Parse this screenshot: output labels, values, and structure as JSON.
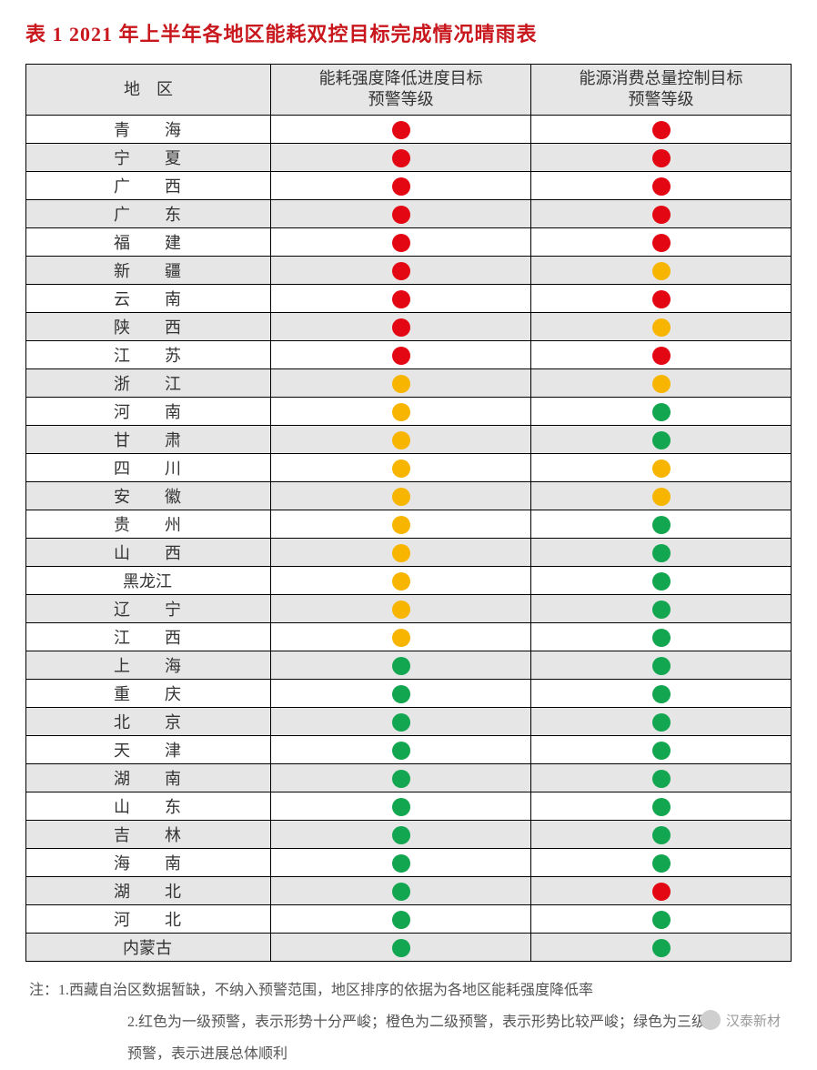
{
  "title": "表 1  2021 年上半年各地区能耗双控目标完成情况晴雨表",
  "columns": {
    "region": "地　区",
    "col2_line1": "能耗强度降低进度目标",
    "col2_line2": "预警等级",
    "col3_line1": "能源消费总量控制目标",
    "col3_line2": "预警等级"
  },
  "colors": {
    "red": "#e30613",
    "orange": "#f7b500",
    "green": "#13a650",
    "header_bg": "#e6e6e6",
    "row_alt_bg": "#e6e6e6",
    "title_color": "#c8171d",
    "border": "#000000"
  },
  "rows": [
    {
      "region": "青　海",
      "c1": "red",
      "c2": "red"
    },
    {
      "region": "宁　夏",
      "c1": "red",
      "c2": "red"
    },
    {
      "region": "广　西",
      "c1": "red",
      "c2": "red"
    },
    {
      "region": "广　东",
      "c1": "red",
      "c2": "red"
    },
    {
      "region": "福　建",
      "c1": "red",
      "c2": "red"
    },
    {
      "region": "新　疆",
      "c1": "red",
      "c2": "orange"
    },
    {
      "region": "云　南",
      "c1": "red",
      "c2": "red"
    },
    {
      "region": "陕　西",
      "c1": "red",
      "c2": "orange"
    },
    {
      "region": "江　苏",
      "c1": "red",
      "c2": "red"
    },
    {
      "region": "浙　江",
      "c1": "orange",
      "c2": "orange"
    },
    {
      "region": "河　南",
      "c1": "orange",
      "c2": "green"
    },
    {
      "region": "甘　肃",
      "c1": "orange",
      "c2": "green"
    },
    {
      "region": "四　川",
      "c1": "orange",
      "c2": "orange"
    },
    {
      "region": "安　徽",
      "c1": "orange",
      "c2": "orange"
    },
    {
      "region": "贵　州",
      "c1": "orange",
      "c2": "green"
    },
    {
      "region": "山　西",
      "c1": "orange",
      "c2": "green"
    },
    {
      "region": "黑龙江",
      "c1": "orange",
      "c2": "green",
      "nols": true
    },
    {
      "region": "辽　宁",
      "c1": "orange",
      "c2": "green"
    },
    {
      "region": "江　西",
      "c1": "orange",
      "c2": "green"
    },
    {
      "region": "上　海",
      "c1": "green",
      "c2": "green"
    },
    {
      "region": "重　庆",
      "c1": "green",
      "c2": "green"
    },
    {
      "region": "北　京",
      "c1": "green",
      "c2": "green"
    },
    {
      "region": "天　津",
      "c1": "green",
      "c2": "green"
    },
    {
      "region": "湖　南",
      "c1": "green",
      "c2": "green"
    },
    {
      "region": "山　东",
      "c1": "green",
      "c2": "green"
    },
    {
      "region": "吉　林",
      "c1": "green",
      "c2": "green"
    },
    {
      "region": "海　南",
      "c1": "green",
      "c2": "green"
    },
    {
      "region": "湖　北",
      "c1": "green",
      "c2": "red"
    },
    {
      "region": "河　北",
      "c1": "green",
      "c2": "green"
    },
    {
      "region": "内蒙古",
      "c1": "green",
      "c2": "green",
      "nols": true
    }
  ],
  "notes": {
    "line1": "注：1.西藏自治区数据暂缺，不纳入预警范围，地区排序的依据为各地区能耗强度降低率",
    "line2": "2.红色为一级预警，表示形势十分严峻；橙色为二级预警，表示形势比较严峻；绿色为三级",
    "line3": "预警，表示进展总体顺利"
  },
  "watermark": "汉泰新材"
}
